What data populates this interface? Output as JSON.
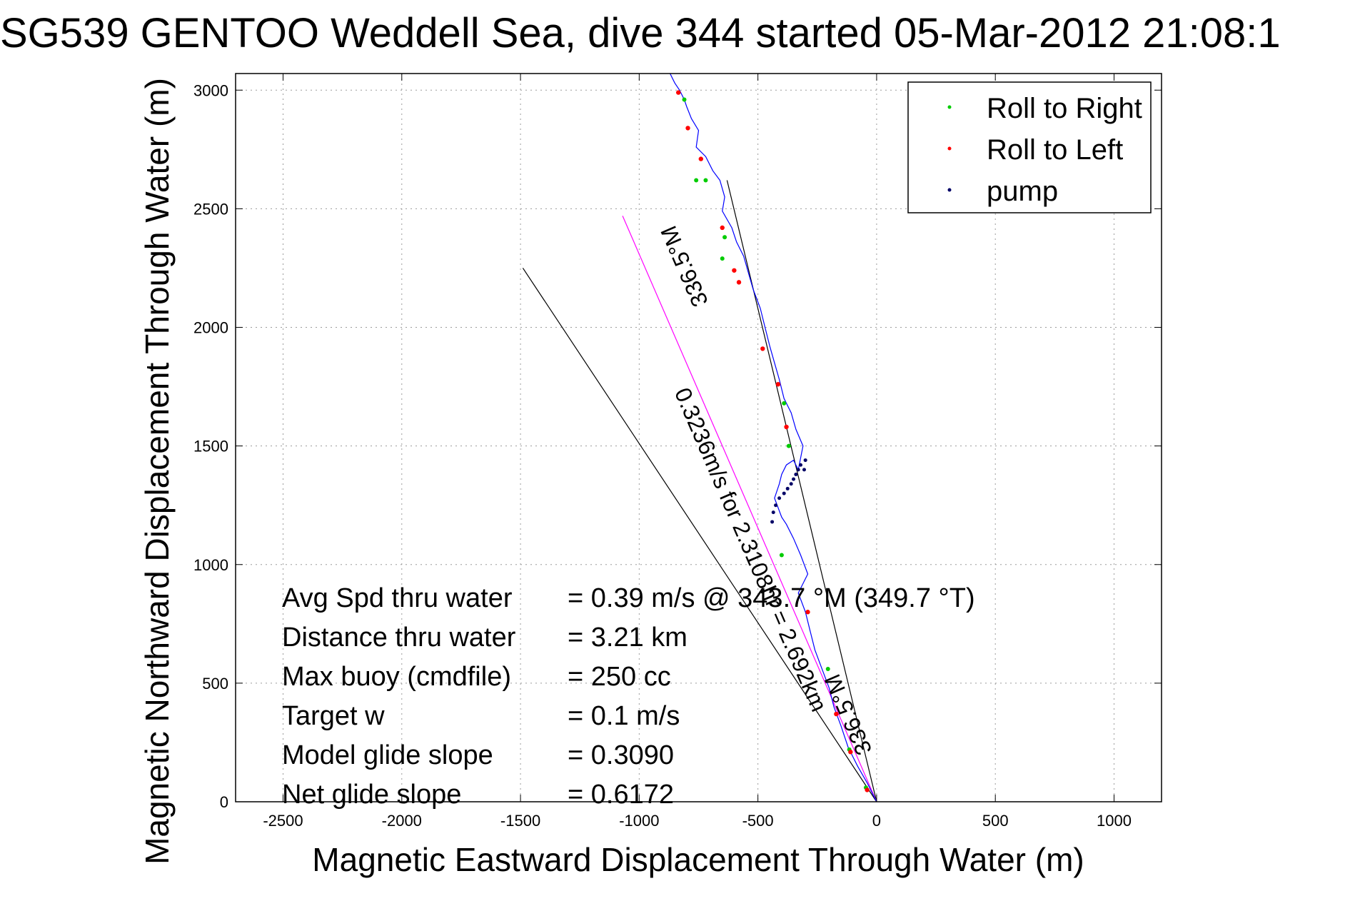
{
  "chart_data": {
    "type": "line",
    "title": "SG539 GENTOO Weddell Sea, dive 344 started 05-Mar-2012 21:08:1",
    "xlabel": "Magnetic Eastward Displacement Through Water (m)",
    "ylabel": "Magnetic Northward Displacement Through Water (m)",
    "xlim": [
      -2700,
      1200
    ],
    "ylim": [
      0,
      3070
    ],
    "xticks": [
      -2500,
      -2000,
      -1500,
      -1000,
      -500,
      0,
      500,
      1000
    ],
    "xtick_labels": [
      "-2500",
      "-2000",
      "-1500",
      "-1000",
      "-500",
      "0",
      "500",
      "1000"
    ],
    "yticks": [
      0,
      500,
      1000,
      1500,
      2000,
      2500,
      3000
    ],
    "ytick_labels": [
      "0",
      "500",
      "1000",
      "1500",
      "2000",
      "2500",
      "3000"
    ],
    "grid": true,
    "legend_position": "top-right",
    "legend": [
      {
        "label": "Roll to Right",
        "color": "#00cc00"
      },
      {
        "label": "Roll to Left",
        "color": "#ff0000"
      },
      {
        "label": "pump",
        "color": "#000066"
      }
    ],
    "track": {
      "color": "#0000ff",
      "x": [
        0,
        -40,
        -80,
        -120,
        -150,
        -180,
        -200,
        -230,
        -260,
        -280,
        -300,
        -330,
        -290,
        -320,
        -350,
        -380,
        -400,
        -430,
        -410,
        -400,
        -380,
        -350,
        -330,
        -310,
        -340,
        -360,
        -390,
        -410,
        -430,
        -450,
        -470,
        -490,
        -520,
        -540,
        -560,
        -590,
        -610,
        -650,
        -640,
        -660,
        -690,
        -720,
        -760,
        -750,
        -780,
        -800,
        -810,
        -830,
        -850,
        -870
      ],
      "y": [
        0,
        80,
        150,
        230,
        320,
        400,
        480,
        560,
        640,
        720,
        800,
        880,
        960,
        1040,
        1110,
        1170,
        1200,
        1280,
        1340,
        1380,
        1420,
        1440,
        1400,
        1500,
        1570,
        1640,
        1700,
        1780,
        1850,
        1920,
        2000,
        2080,
        2160,
        2230,
        2300,
        2360,
        2420,
        2490,
        2550,
        2620,
        2660,
        2720,
        2760,
        2830,
        2880,
        2930,
        2960,
        3000,
        3030,
        3070
      ]
    },
    "roll_to_right_points": {
      "x": [
        -45,
        -115,
        -205,
        -400,
        -390,
        -370,
        -650,
        -640,
        -720,
        -760,
        -810
      ],
      "y": [
        60,
        220,
        560,
        1040,
        1680,
        1500,
        2290,
        2380,
        2620,
        2620,
        2960
      ]
    },
    "roll_to_left_points": {
      "x": [
        -40,
        -110,
        -170,
        -290,
        -415,
        -380,
        -480,
        -580,
        -600,
        -650,
        -740,
        -795,
        -835
      ],
      "y": [
        50,
        210,
        370,
        800,
        1760,
        1580,
        1910,
        2190,
        2240,
        2420,
        2710,
        2840,
        2990
      ]
    },
    "pump_points": {
      "x": [
        -320,
        -330,
        -340,
        -350,
        -360,
        -375,
        -390,
        -410,
        -425,
        -435,
        -440,
        -300,
        -305
      ],
      "y": [
        1420,
        1400,
        1380,
        1360,
        1340,
        1320,
        1300,
        1280,
        1250,
        1220,
        1180,
        1440,
        1400
      ]
    },
    "reference_lines": [
      {
        "name": "glide-line-black-1",
        "color": "#000000",
        "x": [
          0,
          -1490
        ],
        "y": [
          0,
          2250
        ]
      },
      {
        "name": "glide-line-black-2",
        "color": "#000000",
        "x": [
          0,
          -630
        ],
        "y": [
          0,
          2620
        ]
      },
      {
        "name": "heading-line-magenta",
        "color": "#ff00ff",
        "x": [
          0,
          -1070
        ],
        "y": [
          0,
          2470
        ]
      }
    ],
    "rotated_labels": [
      {
        "text": "0.3236m/s for 2.3108hr = 2.692km",
        "x": -560,
        "y": 1050,
        "angle": 66.6
      },
      {
        "text": "336.5°M",
        "x": -780,
        "y": 2270,
        "angle": 246.5
      },
      {
        "text": "336.5°M",
        "x": -90,
        "y": 380,
        "angle": 246.5
      }
    ],
    "annotations": [
      {
        "label": "Avg Spd thru water",
        "value": "=  0.39 m/s @  343.7 °M (349.7 °T)"
      },
      {
        "label": "Distance thru water",
        "value": "=  3.21 km"
      },
      {
        "label": "Max buoy (cmdfile)",
        "value": "= 250 cc"
      },
      {
        "label": "Target w",
        "value": "= 0.1 m/s"
      },
      {
        "label": "Model glide slope",
        "value": "= 0.3090"
      },
      {
        "label": "Net glide slope",
        "value": "= 0.6172"
      }
    ]
  }
}
